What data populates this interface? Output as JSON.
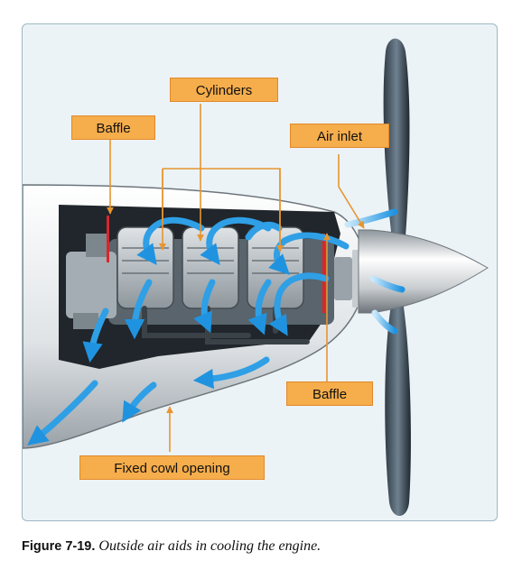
{
  "labels": {
    "cylinders": "Cylinders",
    "baffle_top": "Baffle",
    "air_inlet": "Air inlet",
    "baffle_bottom": "Baffle",
    "fixed_cowl_opening": "Fixed cowl opening"
  },
  "caption": {
    "figure_number": "Figure 7-19.",
    "text": "Outside air aids in cooling the engine."
  },
  "colors": {
    "label_fill": "#f6ad4b",
    "leader_line": "#e8952f",
    "airflow": "#2f9fe6",
    "baffle": "#d8262b",
    "background": "#ecf3f7"
  }
}
